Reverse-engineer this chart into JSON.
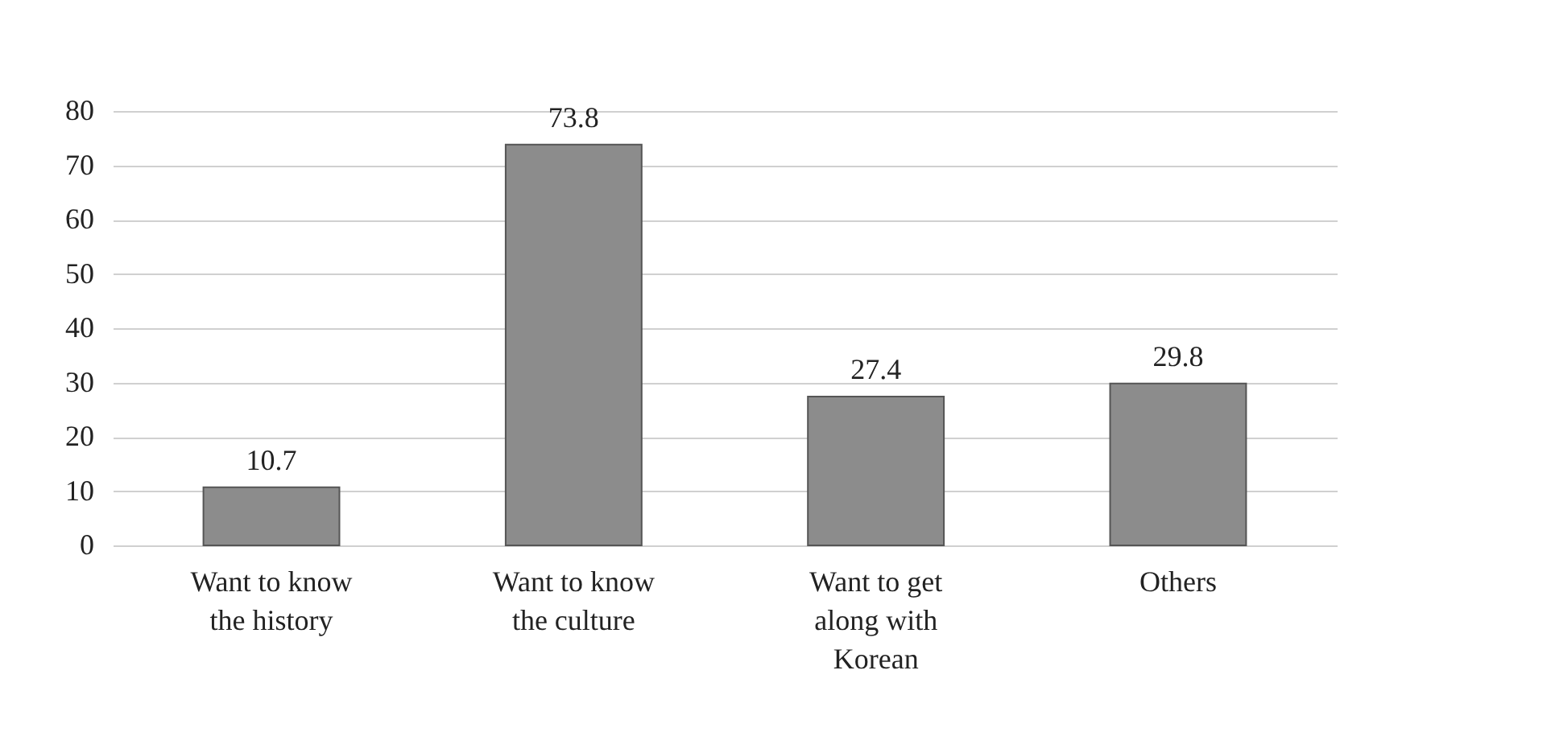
{
  "chart_data": {
    "type": "bar",
    "categories": [
      "Want to know the history",
      "Want to know the culture",
      "Want to get along with Korean",
      "Others"
    ],
    "values": [
      10.7,
      73.8,
      27.4,
      29.8
    ],
    "color": "#8c8c8c",
    "ylim": [
      0,
      80
    ],
    "yticks": [
      0,
      10,
      20,
      30,
      40,
      50,
      60,
      70,
      80
    ],
    "grid": true,
    "data_labels": true
  }
}
